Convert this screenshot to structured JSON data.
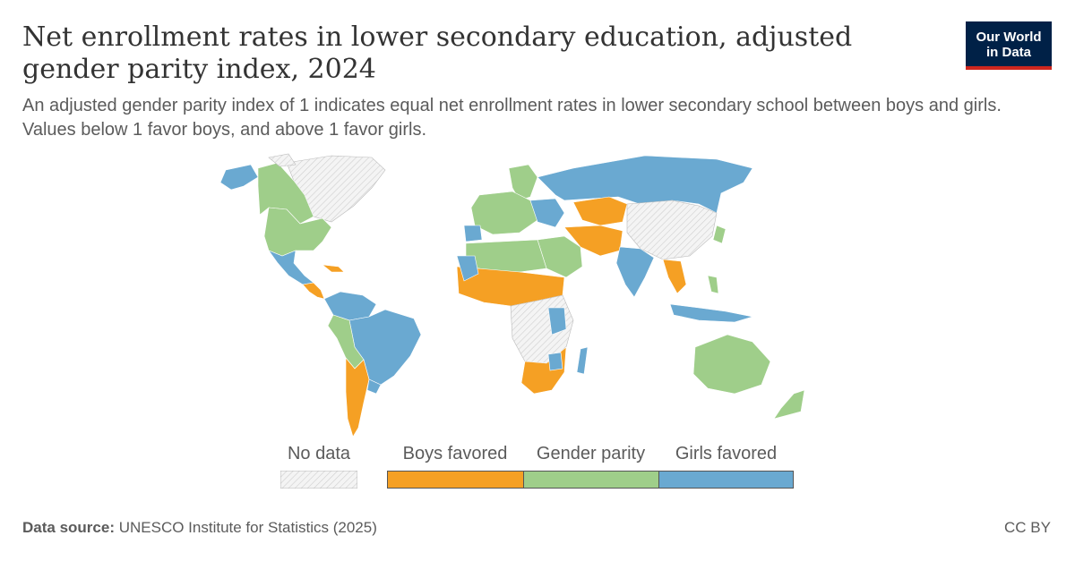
{
  "header": {
    "title": "Net enrollment rates in lower secondary education, adjusted gender parity index, 2024",
    "subtitle": "An adjusted gender parity index of 1 indicates equal net enrollment rates in lower secondary school between boys and girls. Values below 1 favor boys, and above 1 favor girls.",
    "logo_line1": "Our World",
    "logo_line2": "in Data"
  },
  "legend": {
    "no_data": "No data",
    "items": [
      {
        "label": "Boys favored",
        "color": "#f5a024"
      },
      {
        "label": "Gender parity",
        "color": "#9fce8a"
      },
      {
        "label": "Girls favored",
        "color": "#6aa9d1"
      }
    ]
  },
  "colors": {
    "boys": "#f5a024",
    "parity": "#9fce8a",
    "girls": "#6aa9d1",
    "no_data": "#e9e9e9"
  },
  "footer": {
    "source_label": "Data source:",
    "source_text": "UNESCO Institute for Statistics (2025)",
    "license": "CC BY"
  }
}
